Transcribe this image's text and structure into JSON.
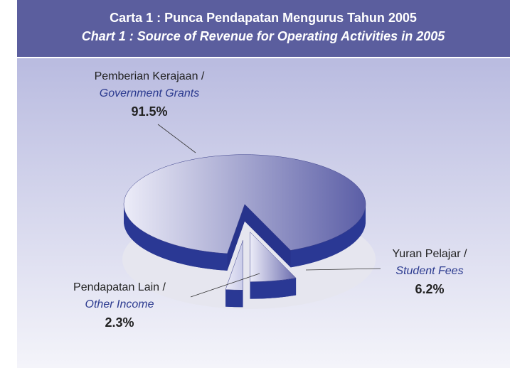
{
  "chart_data": {
    "type": "pie",
    "title": "Carta 1 : Punca Pendapatan Mengurus Tahun 2005",
    "subtitle": "Chart 1 : Source of Revenue for Operating Activities in 2005",
    "categories": [
      "Pemberian Kerajaan /",
      "Yuran Pelajar /",
      "Pendapatan Lain /"
    ],
    "categories_en": [
      "Government Grants",
      "Student Fees",
      "Other Income"
    ],
    "values": [
      91.5,
      6.2,
      2.3
    ],
    "value_labels": [
      "91.5%",
      "6.2%",
      "2.3%"
    ],
    "colors": [
      "#5b5ea6",
      "#6a6cae",
      "#c9cbe8"
    ]
  }
}
